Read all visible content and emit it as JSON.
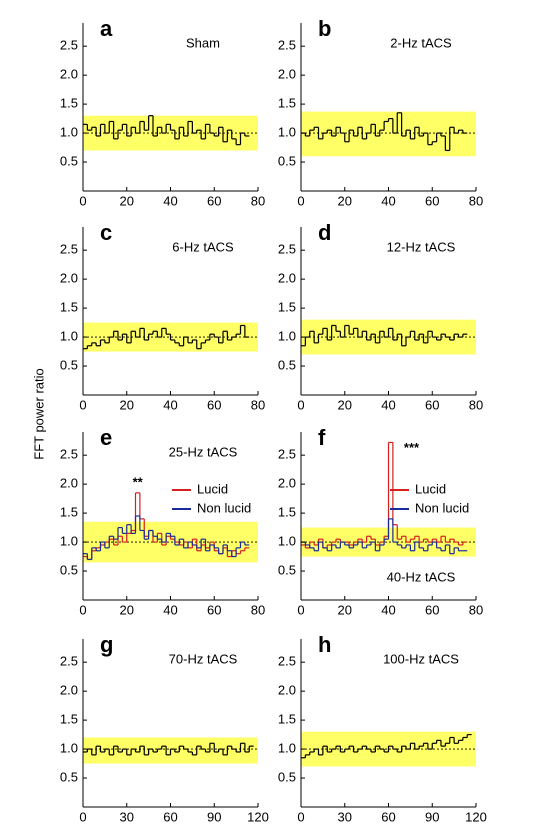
{
  "y_axis_label": "FFT power ratio",
  "chart_data": [
    {
      "type": "step",
      "panel": "a",
      "title": "Sham",
      "x": [
        0,
        2,
        4,
        6,
        8,
        10,
        12,
        14,
        16,
        18,
        20,
        22,
        24,
        26,
        28,
        30,
        32,
        34,
        36,
        38,
        40,
        42,
        44,
        46,
        48,
        50,
        52,
        54,
        56,
        58,
        60,
        62,
        64,
        66,
        68,
        70,
        72,
        74
      ],
      "series": [
        {
          "color": "#000000",
          "values": [
            1.15,
            1.05,
            1.1,
            0.95,
            1.15,
            1.0,
            1.2,
            0.9,
            1.05,
            1.15,
            0.95,
            1.1,
            1.0,
            1.2,
            1.05,
            1.3,
            0.95,
            1.1,
            1.0,
            1.15,
            1.05,
            0.9,
            1.1,
            0.95,
            1.2,
            1.0,
            1.05,
            0.9,
            1.15,
            1.0,
            0.95,
            1.1,
            0.85,
            1.05,
            0.9,
            0.8,
            1.0,
            0.95
          ]
        }
      ],
      "xlim": [
        0,
        80
      ],
      "xticks": [
        0,
        20,
        40,
        60,
        80
      ],
      "ylim": [
        0,
        2.9
      ],
      "yticks": [
        0.5,
        {
          "value": 1,
          "label": "1.0"
        },
        1.5,
        {
          "value": 2,
          "label": "2.0"
        },
        2.5
      ],
      "band": [
        0.7,
        1.3
      ],
      "band_color": "#ffff66",
      "reference_line": 1
    },
    {
      "type": "step",
      "panel": "b",
      "title": "2-Hz  tACS",
      "x": [
        0,
        2,
        4,
        6,
        8,
        10,
        12,
        14,
        16,
        18,
        20,
        22,
        24,
        26,
        28,
        30,
        32,
        34,
        36,
        38,
        40,
        42,
        44,
        46,
        48,
        50,
        52,
        54,
        56,
        58,
        60,
        62,
        64,
        66,
        68,
        70,
        72,
        74
      ],
      "series": [
        {
          "color": "#000000",
          "values": [
            1.0,
            0.95,
            1.05,
            1.1,
            0.9,
            1.0,
            1.05,
            0.95,
            1.1,
            1.0,
            0.85,
            1.05,
            0.95,
            1.1,
            0.9,
            1.0,
            1.15,
            0.95,
            1.05,
            1.2,
            1.25,
            1.0,
            1.35,
            0.95,
            1.05,
            0.9,
            1.1,
            0.95,
            1.0,
            0.8,
            0.85,
            1.0,
            0.95,
            0.7,
            1.1,
            1.0,
            1.05,
            1.0
          ]
        }
      ],
      "xlim": [
        0,
        80
      ],
      "xticks": [
        0,
        20,
        40,
        60,
        80
      ],
      "ylim": [
        0,
        2.9
      ],
      "yticks": [
        0.5,
        {
          "value": 1,
          "label": "1.0"
        },
        1.5,
        {
          "value": 2,
          "label": "2.0"
        },
        2.5
      ],
      "band": [
        0.6,
        1.37
      ],
      "band_color": "#ffff66",
      "reference_line": 1
    },
    {
      "type": "step",
      "panel": "c",
      "title": "6-Hz  tACS",
      "x": [
        0,
        2,
        4,
        6,
        8,
        10,
        12,
        14,
        16,
        18,
        20,
        22,
        24,
        26,
        28,
        30,
        32,
        34,
        36,
        38,
        40,
        42,
        44,
        46,
        48,
        50,
        52,
        54,
        56,
        58,
        60,
        62,
        64,
        66,
        68,
        70,
        72,
        74
      ],
      "series": [
        {
          "color": "#000000",
          "values": [
            0.8,
            0.85,
            0.9,
            0.85,
            0.95,
            0.9,
            1.0,
            1.1,
            0.95,
            1.05,
            0.9,
            1.1,
            1.0,
            1.15,
            0.95,
            1.05,
            1.1,
            1.0,
            1.15,
            1.05,
            0.95,
            0.9,
            0.85,
            1.0,
            0.9,
            0.95,
            0.8,
            0.9,
            0.95,
            1.05,
            1.0,
            0.9,
            1.1,
            0.95,
            1.0,
            1.05,
            1.2,
            1.0
          ]
        }
      ],
      "xlim": [
        0,
        80
      ],
      "xticks": [
        0,
        20,
        40,
        60,
        80
      ],
      "ylim": [
        0,
        2.9
      ],
      "yticks": [
        0.5,
        {
          "value": 1,
          "label": "1.0"
        },
        1.5,
        {
          "value": 2,
          "label": "2.0"
        },
        2.5
      ],
      "band": [
        0.75,
        1.25
      ],
      "band_color": "#ffff66",
      "reference_line": 1
    },
    {
      "type": "step",
      "panel": "d",
      "title": "12-Hz  tACS",
      "x": [
        0,
        2,
        4,
        6,
        8,
        10,
        12,
        14,
        16,
        18,
        20,
        22,
        24,
        26,
        28,
        30,
        32,
        34,
        36,
        38,
        40,
        42,
        44,
        46,
        48,
        50,
        52,
        54,
        56,
        58,
        60,
        62,
        64,
        66,
        68,
        70,
        72,
        74
      ],
      "series": [
        {
          "color": "#000000",
          "values": [
            0.85,
            1.0,
            1.1,
            0.9,
            1.05,
            1.15,
            0.95,
            1.2,
            1.1,
            1.0,
            1.2,
            1.05,
            1.15,
            1.0,
            1.1,
            0.95,
            1.05,
            0.9,
            1.1,
            1.0,
            1.15,
            0.95,
            1.05,
            0.85,
            1.0,
            1.1,
            0.95,
            1.05,
            0.9,
            1.1,
            1.0,
            0.95,
            1.05,
            1.0,
            0.95,
            1.05,
            1.0,
            1.05
          ]
        }
      ],
      "xlim": [
        0,
        80
      ],
      "xticks": [
        0,
        20,
        40,
        60,
        80
      ],
      "ylim": [
        0,
        2.9
      ],
      "yticks": [
        0.5,
        {
          "value": 1,
          "label": "1.0"
        },
        1.5,
        {
          "value": 2,
          "label": "2.0"
        },
        2.5
      ],
      "band": [
        0.7,
        1.3
      ],
      "band_color": "#ffff66",
      "reference_line": 1
    },
    {
      "type": "step",
      "panel": "e",
      "title": "25-Hz  tACS",
      "annotation": "**",
      "x": [
        0,
        2,
        4,
        6,
        8,
        10,
        12,
        14,
        16,
        18,
        20,
        22,
        24,
        26,
        28,
        30,
        32,
        34,
        36,
        38,
        40,
        42,
        44,
        46,
        48,
        50,
        52,
        54,
        56,
        58,
        60,
        62,
        64,
        66,
        68,
        70,
        72,
        74
      ],
      "series": [
        {
          "name": "Lucid",
          "color": "#d62020",
          "values": [
            0.75,
            0.7,
            0.85,
            0.9,
            0.95,
            1.0,
            1.05,
            0.95,
            1.1,
            1.0,
            1.15,
            1.2,
            1.85,
            1.4,
            1.1,
            1.2,
            1.0,
            1.15,
            0.95,
            1.1,
            1.05,
            1.0,
            0.95,
            1.0,
            0.9,
            1.05,
            0.85,
            0.95,
            0.9,
            1.0,
            0.85,
            0.8,
            0.9,
            0.75,
            0.85,
            0.8,
            0.85,
            0.9
          ]
        },
        {
          "name": "Non lucid",
          "color": "#1a2a9a",
          "values": [
            0.8,
            0.7,
            0.9,
            0.85,
            1.0,
            0.9,
            1.1,
            1.05,
            1.25,
            1.15,
            1.3,
            1.15,
            1.45,
            1.2,
            1.05,
            1.2,
            1.1,
            1.05,
            1.0,
            1.15,
            1.1,
            0.95,
            1.05,
            0.9,
            1.0,
            0.95,
            0.9,
            1.05,
            0.85,
            0.95,
            0.9,
            0.8,
            0.95,
            0.85,
            0.75,
            0.9,
            1.0,
            0.95
          ]
        }
      ],
      "xlim": [
        0,
        80
      ],
      "xticks": [
        0,
        20,
        40,
        60,
        80
      ],
      "ylim": [
        0,
        2.9
      ],
      "yticks": [
        0.5,
        {
          "value": 1,
          "label": "1.0"
        },
        1.5,
        {
          "value": 2,
          "label": "2.0"
        },
        2.5
      ],
      "band": [
        0.65,
        1.35
      ],
      "band_color": "#ffff66",
      "reference_line": 1
    },
    {
      "type": "step",
      "panel": "f",
      "title": "40-Hz  tACS",
      "title_position": "bottom",
      "annotation": "***",
      "x": [
        0,
        2,
        4,
        6,
        8,
        10,
        12,
        14,
        16,
        18,
        20,
        22,
        24,
        26,
        28,
        30,
        32,
        34,
        36,
        38,
        40,
        42,
        44,
        46,
        48,
        50,
        52,
        54,
        56,
        58,
        60,
        62,
        64,
        66,
        68,
        70,
        72,
        74
      ],
      "series": [
        {
          "name": "Lucid",
          "color": "#d62020",
          "values": [
            0.95,
            0.9,
            1.0,
            0.95,
            1.05,
            0.9,
            0.95,
            1.0,
            1.05,
            1.0,
            1.0,
            0.95,
            1.0,
            1.05,
            1.0,
            1.1,
            1.05,
            0.95,
            1.0,
            1.1,
            2.72,
            1.3,
            1.05,
            1.1,
            1.0,
            1.05,
            1.1,
            1.0,
            1.05,
            1.0,
            1.05,
            1.0,
            1.1,
            1.0,
            1.05,
            1.0,
            0.95,
            1.0
          ]
        },
        {
          "name": "Non lucid",
          "color": "#1a2a9a",
          "values": [
            1.0,
            0.95,
            0.9,
            0.85,
            1.0,
            0.9,
            0.85,
            0.95,
            0.9,
            1.0,
            0.95,
            0.9,
            0.95,
            1.0,
            0.9,
            0.95,
            1.0,
            0.85,
            0.95,
            1.05,
            1.4,
            1.0,
            0.95,
            0.9,
            0.95,
            0.85,
            1.0,
            0.9,
            0.85,
            0.95,
            1.0,
            0.9,
            0.85,
            0.95,
            0.8,
            0.9,
            0.85,
            0.85
          ]
        }
      ],
      "xlim": [
        0,
        80
      ],
      "xticks": [
        0,
        20,
        40,
        60,
        80
      ],
      "ylim": [
        0,
        2.9
      ],
      "yticks": [
        0.5,
        {
          "value": 1,
          "label": "1.0"
        },
        1.5,
        {
          "value": 2,
          "label": "2.0"
        },
        2.5
      ],
      "band": [
        0.75,
        1.25
      ],
      "band_color": "#ffff66",
      "reference_line": 1
    },
    {
      "type": "step",
      "panel": "g",
      "title": "70-Hz  tACS",
      "x": [
        0,
        3,
        6,
        9,
        12,
        15,
        18,
        21,
        24,
        27,
        30,
        33,
        36,
        39,
        42,
        45,
        48,
        51,
        54,
        57,
        60,
        63,
        66,
        69,
        72,
        75,
        78,
        81,
        84,
        87,
        90,
        93,
        96,
        99,
        102,
        105,
        108,
        111,
        114
      ],
      "series": [
        {
          "color": "#000000",
          "values": [
            0.95,
            1.0,
            0.9,
            1.05,
            0.95,
            1.0,
            0.9,
            1.05,
            0.95,
            1.0,
            0.9,
            1.0,
            0.95,
            1.05,
            0.9,
            1.0,
            0.95,
            1.0,
            1.05,
            0.9,
            1.0,
            0.95,
            1.05,
            1.0,
            0.95,
            0.9,
            1.05,
            1.0,
            0.95,
            1.1,
            0.95,
            1.0,
            0.9,
            1.05,
            1.0,
            0.95,
            1.1,
            0.95,
            1.05
          ]
        }
      ],
      "xlim": [
        0,
        120
      ],
      "xticks": [
        0,
        30,
        60,
        90,
        120
      ],
      "ylim": [
        0,
        2.9
      ],
      "yticks": [
        0.5,
        {
          "value": 1,
          "label": "1.0"
        },
        1.5,
        {
          "value": 2,
          "label": "2.0"
        },
        2.5
      ],
      "band": [
        0.75,
        1.2
      ],
      "band_color": "#ffff66",
      "reference_line": 1
    },
    {
      "type": "step",
      "panel": "h",
      "title": "100-Hz  tACS",
      "x": [
        0,
        3,
        6,
        9,
        12,
        15,
        18,
        21,
        24,
        27,
        30,
        33,
        36,
        39,
        42,
        45,
        48,
        51,
        54,
        57,
        60,
        63,
        66,
        69,
        72,
        75,
        78,
        81,
        84,
        87,
        90,
        93,
        96,
        99,
        102,
        105,
        108,
        111,
        114
      ],
      "series": [
        {
          "color": "#000000",
          "values": [
            0.85,
            0.9,
            0.95,
            1.0,
            0.9,
            1.05,
            0.95,
            1.0,
            1.05,
            0.95,
            1.0,
            1.05,
            0.95,
            1.0,
            1.05,
            1.0,
            0.95,
            1.05,
            1.0,
            0.95,
            1.05,
            1.0,
            0.95,
            1.05,
            1.0,
            1.1,
            1.0,
            1.05,
            1.1,
            1.0,
            1.1,
            1.15,
            1.05,
            1.1,
            1.2,
            1.1,
            1.15,
            1.2,
            1.25
          ]
        }
      ],
      "xlim": [
        0,
        120
      ],
      "xticks": [
        0,
        30,
        60,
        90,
        120
      ],
      "ylim": [
        0,
        2.9
      ],
      "yticks": [
        0.5,
        {
          "value": 1,
          "label": "1.0"
        },
        1.5,
        {
          "value": 2,
          "label": "2.0"
        },
        2.5
      ],
      "band": [
        0.7,
        1.3
      ],
      "band_color": "#ffff66",
      "reference_line": 1
    }
  ]
}
